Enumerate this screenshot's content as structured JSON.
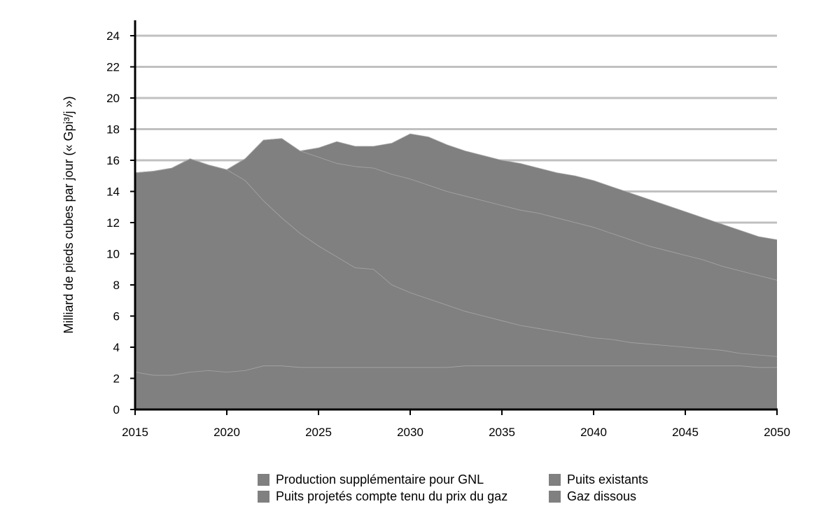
{
  "chart_data": {
    "type": "area",
    "stacked": false,
    "title": "",
    "xlabel": "",
    "ylabel": "Milliard de pieds cubes par jour (« Gpi³/j »)",
    "xlim": [
      2015,
      2050
    ],
    "ylim": [
      0,
      24
    ],
    "x_ticks": [
      "2015",
      "2020",
      "2025",
      "2030",
      "2035",
      "2040",
      "2045",
      "2050"
    ],
    "y_ticks": [
      "0",
      "2",
      "4",
      "6",
      "8",
      "10",
      "12",
      "14",
      "16",
      "18",
      "20",
      "22",
      "24"
    ],
    "grid": "horizontal",
    "legend_position": "bottom",
    "fill_color": "#808080",
    "grid_color": "#c0c0c0",
    "x": [
      2015,
      2016,
      2017,
      2018,
      2019,
      2020,
      2021,
      2022,
      2023,
      2024,
      2025,
      2026,
      2027,
      2028,
      2029,
      2030,
      2031,
      2032,
      2033,
      2034,
      2035,
      2036,
      2037,
      2038,
      2039,
      2040,
      2041,
      2042,
      2043,
      2044,
      2045,
      2046,
      2047,
      2048,
      2049,
      2050
    ],
    "series": [
      {
        "name": "Production supplémentaire pour GNL",
        "values": [
          15.2,
          15.3,
          15.5,
          16.1,
          15.7,
          15.4,
          16.1,
          17.3,
          17.4,
          16.6,
          16.8,
          17.2,
          16.9,
          16.9,
          17.1,
          17.7,
          17.5,
          17.0,
          16.6,
          16.3,
          16.0,
          15.8,
          15.5,
          15.2,
          15.0,
          14.7,
          14.3,
          13.9,
          13.5,
          13.1,
          12.7,
          12.3,
          11.9,
          11.5,
          11.1,
          10.9
        ]
      },
      {
        "name": "Puits existants",
        "values": [
          15.2,
          15.3,
          15.5,
          16.1,
          15.7,
          15.4,
          14.7,
          13.4,
          12.3,
          11.3,
          10.5,
          9.8,
          9.1,
          9.0,
          8.0,
          7.5,
          7.1,
          6.7,
          6.3,
          6.0,
          5.7,
          5.4,
          5.2,
          5.0,
          4.8,
          4.6,
          4.5,
          4.3,
          4.2,
          4.1,
          4.0,
          3.9,
          3.8,
          3.6,
          3.5,
          3.4
        ]
      },
      {
        "name": "Puits projetés compte tenu du prix du gaz",
        "values": [
          15.2,
          15.3,
          15.5,
          16.1,
          15.7,
          15.4,
          16.1,
          17.3,
          17.4,
          16.6,
          16.2,
          15.8,
          15.6,
          15.5,
          15.1,
          14.8,
          14.4,
          14.0,
          13.7,
          13.4,
          13.1,
          12.8,
          12.6,
          12.3,
          12.0,
          11.7,
          11.3,
          10.9,
          10.5,
          10.2,
          9.9,
          9.6,
          9.2,
          8.9,
          8.6,
          8.3
        ]
      },
      {
        "name": "Gaz dissous",
        "values": [
          2.4,
          2.2,
          2.2,
          2.4,
          2.5,
          2.4,
          2.5,
          2.8,
          2.8,
          2.7,
          2.7,
          2.7,
          2.7,
          2.7,
          2.7,
          2.7,
          2.7,
          2.7,
          2.8,
          2.8,
          2.8,
          2.8,
          2.8,
          2.8,
          2.8,
          2.8,
          2.8,
          2.8,
          2.8,
          2.8,
          2.8,
          2.8,
          2.8,
          2.8,
          2.7,
          2.7
        ]
      }
    ]
  }
}
